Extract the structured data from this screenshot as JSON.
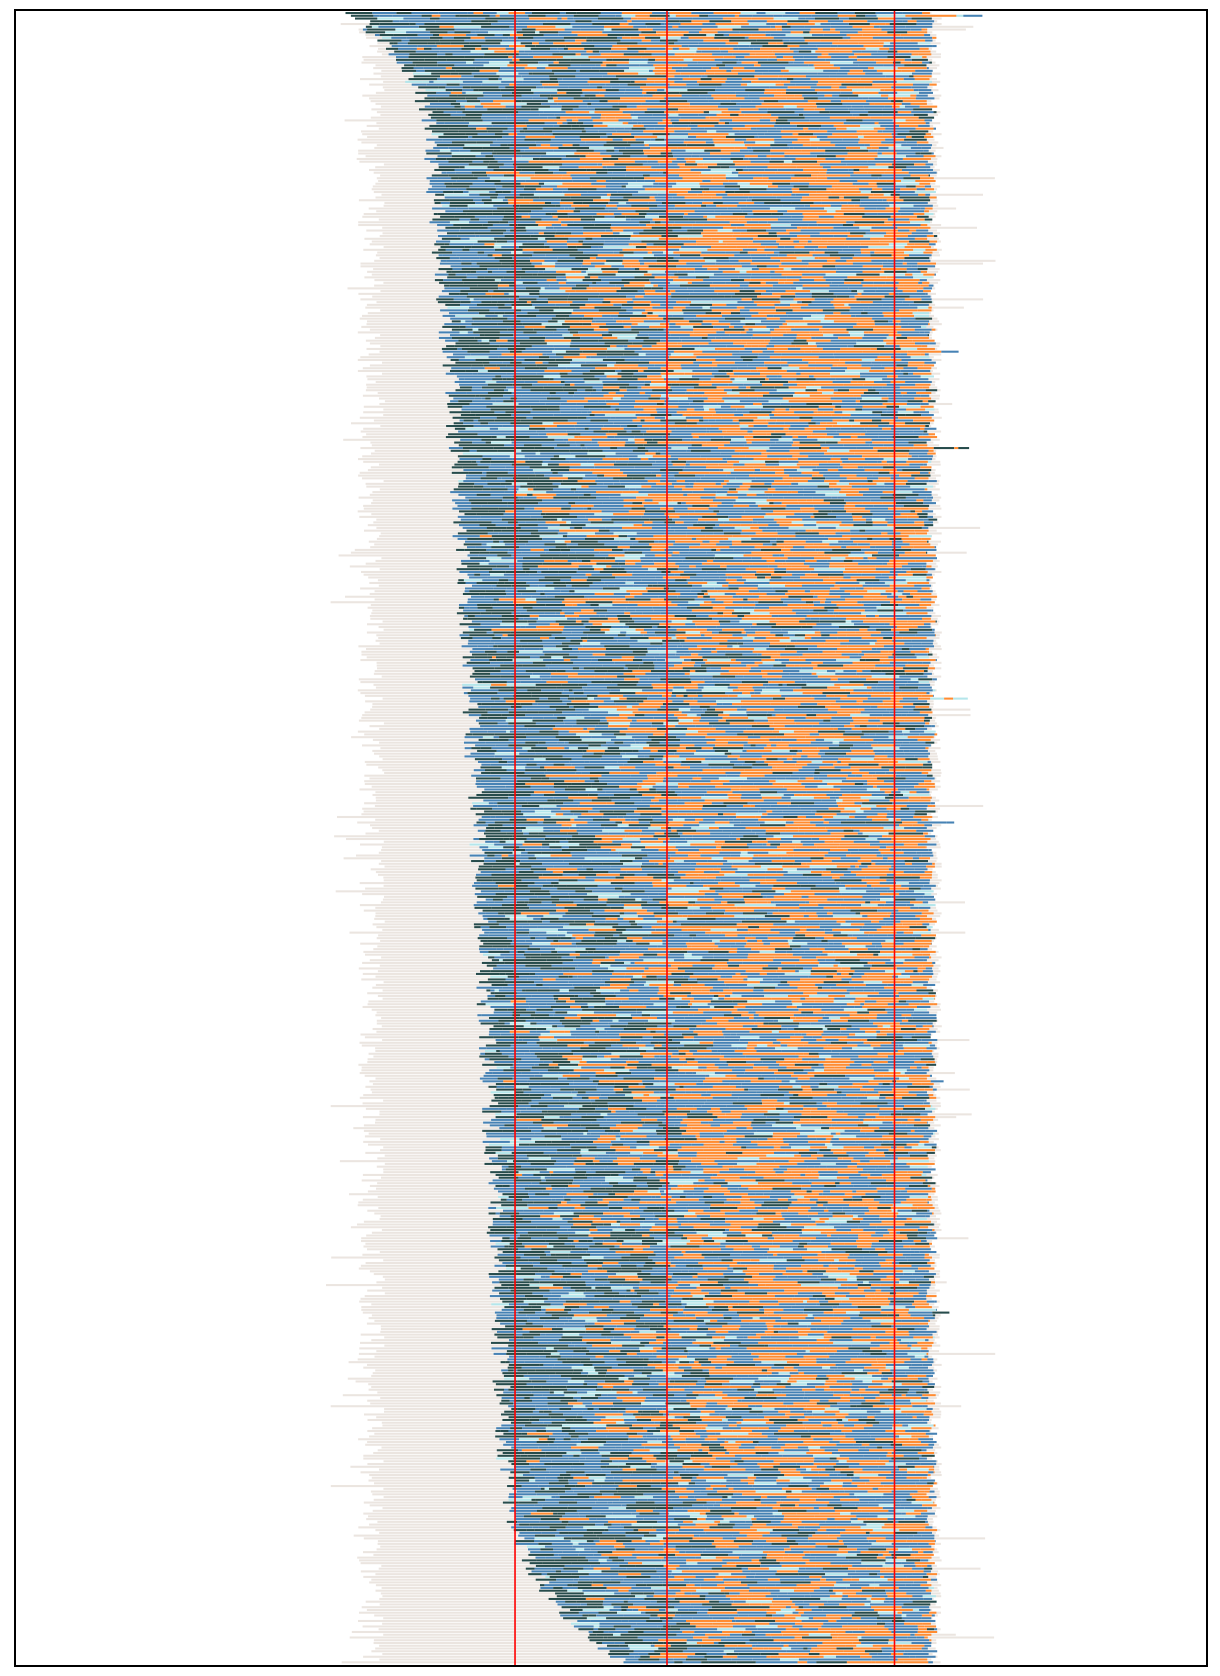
{
  "chart_data": {
    "type": "bar",
    "title": "",
    "xlabel": "",
    "ylabel": "",
    "description_of_encoding": "",
    "grid": false,
    "legend": "none",
    "rows": 600,
    "colors": {
      "background_segment": "#ebe5e0",
      "dark_segment": "#264b4b",
      "blue_segment": "#4682b4",
      "orange_segment": "#ff8c32",
      "light_segment": "#b4e6eb",
      "reference_line": "#ff0000",
      "frame": "#000000"
    },
    "reference_lines": [
      {
        "name": "ref-line-1",
        "x": 0.333
      },
      {
        "name": "ref-line-2",
        "x": 0.5
      },
      {
        "name": "ref-line-3",
        "x": 0.75
      }
    ]
  }
}
